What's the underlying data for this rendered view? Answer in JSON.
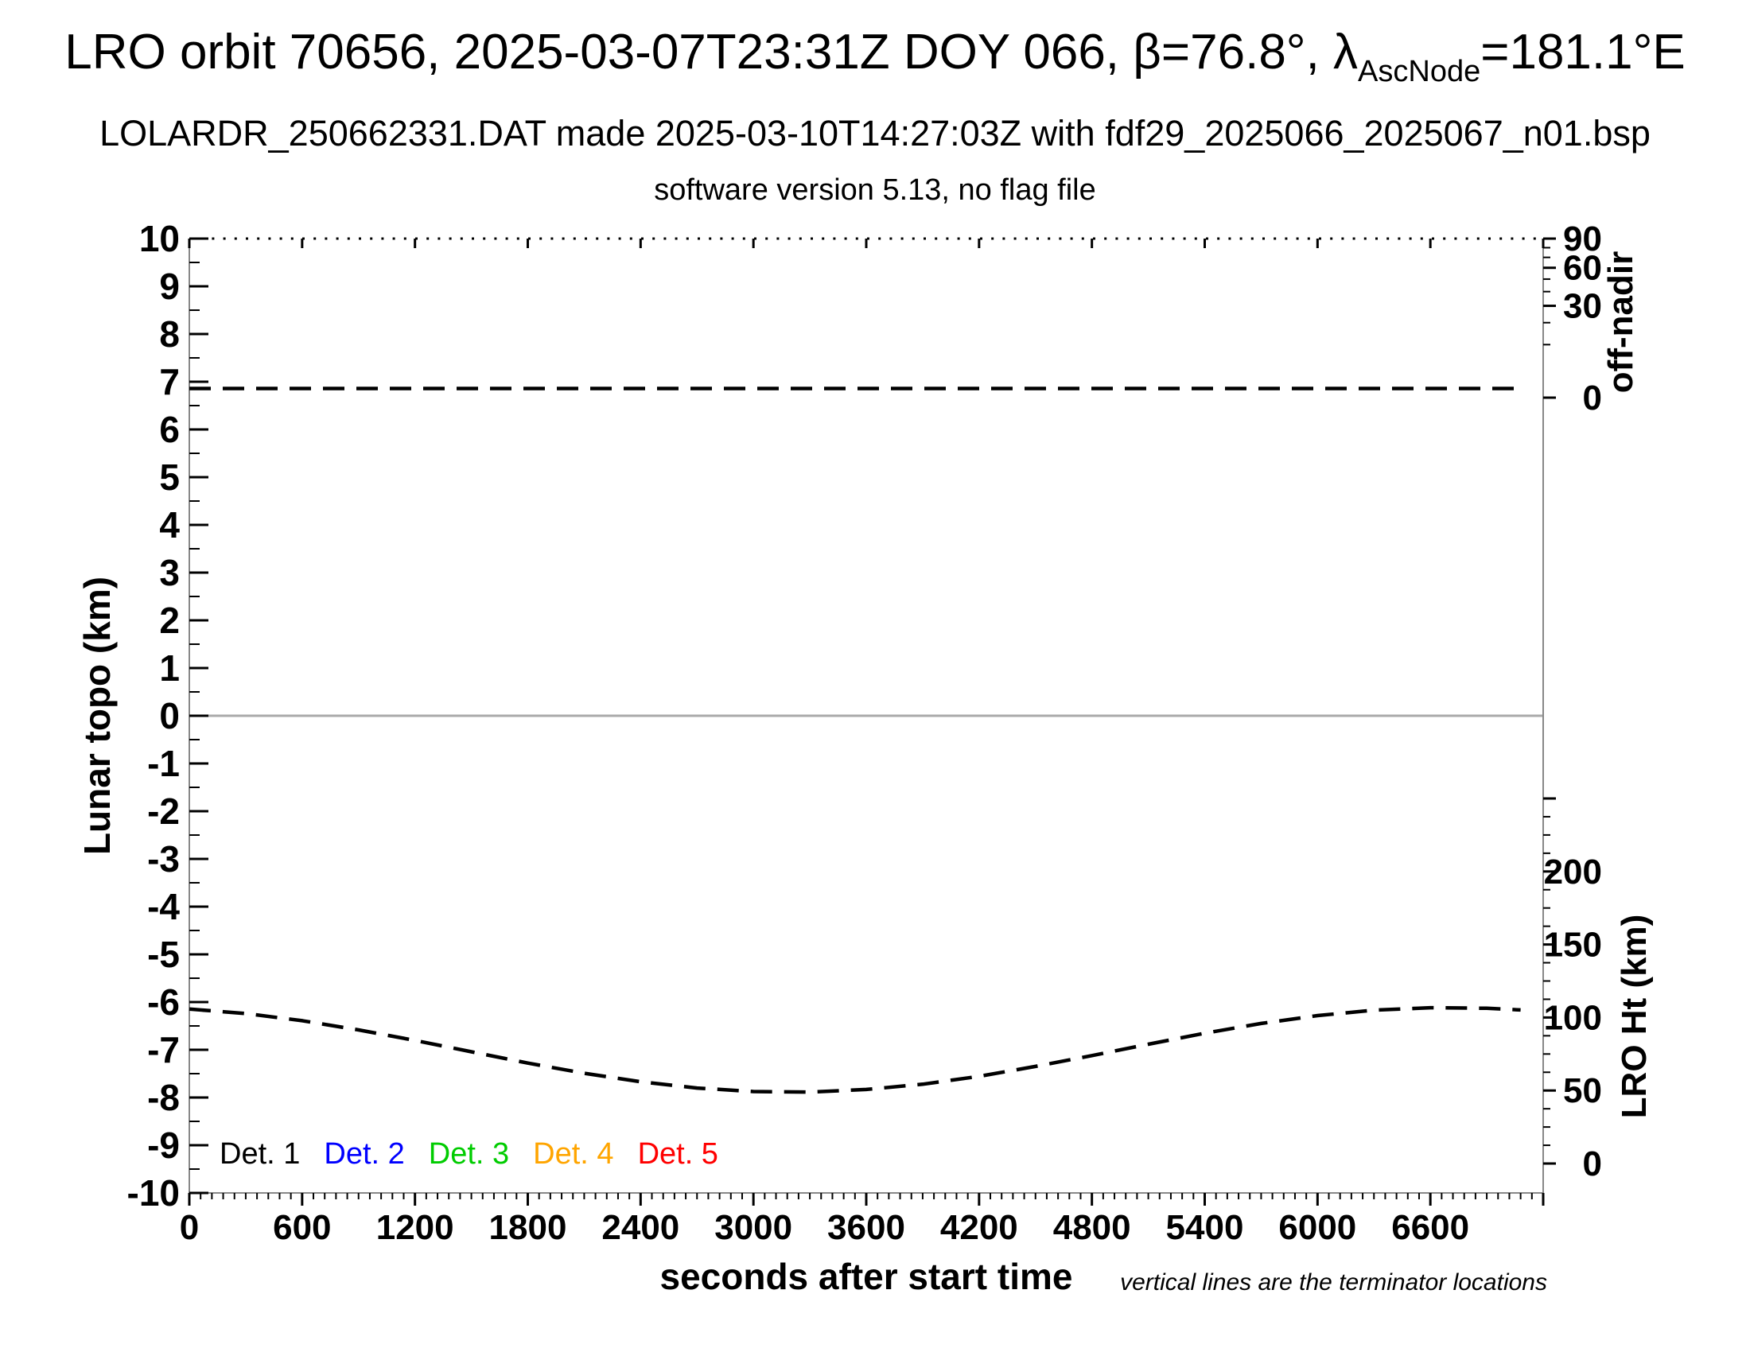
{
  "header": {
    "title_prefix": "LRO orbit 70656, 2025-03-07T23:31Z DOY 066, β=76.8°, λ",
    "title_subscript": "AscNode",
    "title_suffix": "=181.1°E",
    "subtitle_line1": "LOLARDR_250662331.DAT made 2025-03-10T14:27:03Z with fdf29_2025066_2025067_n01.bsp",
    "subtitle_line2": "software version 5.13, no flag file"
  },
  "chart_data": {
    "type": "line",
    "xlabel": "seconds after start time",
    "ylabel_left": "Lunar topo (km)",
    "ylabel_right_top": "off-nadir",
    "ylabel_right_bottom": "LRO Ht (km)",
    "footnote": "vertical lines are the terminator locations",
    "grid": "off",
    "x_axis": {
      "range": [
        0,
        7200
      ],
      "major_tick_step": 600,
      "minor_tick_step": 60,
      "tick_labels": [
        0,
        600,
        1200,
        1800,
        2400,
        3000,
        3600,
        4200,
        4800,
        5400,
        6000,
        6600
      ]
    },
    "topo_axis": {
      "range": [
        -10,
        10
      ],
      "major_tick_step": 1,
      "minor_tick_step": 0.5,
      "tick_labels": [
        10,
        9,
        8,
        7,
        6,
        5,
        4,
        3,
        2,
        1,
        0,
        -1,
        -2,
        -3,
        -4,
        -5,
        -6,
        -7,
        -8,
        -9,
        -10
      ],
      "zero_line_at": 0
    },
    "off_nadir_axis": {
      "scale": "sqrt",
      "range": [
        0,
        90
      ],
      "tick_labels": [
        90,
        60,
        30,
        0
      ],
      "minor_ticks": [
        10,
        20,
        40,
        50,
        70,
        80
      ]
    },
    "lro_ht_axis": {
      "range": [
        0,
        250
      ],
      "major_tick_step": 50,
      "minor_tick_step": 12.5,
      "tick_labels": [
        200,
        150,
        100,
        50,
        0
      ]
    },
    "series": [
      {
        "name": "off-nadir angle (deg)",
        "axis": "off_nadir",
        "line_style": "dashed",
        "color": "#000000",
        "x": [
          0,
          7080
        ],
        "values": [
          0.3,
          0.3
        ]
      },
      {
        "name": "LRO height (km)",
        "axis": "lro_ht",
        "line_style": "dashed",
        "color": "#000000",
        "x": [
          0,
          300,
          600,
          900,
          1200,
          1500,
          1800,
          2100,
          2400,
          2700,
          3000,
          3300,
          3600,
          3900,
          4200,
          4500,
          4800,
          5100,
          5400,
          5700,
          6000,
          6300,
          6600,
          6900,
          7080
        ],
        "values": [
          105.8,
          102.7,
          97.8,
          91.5,
          84.3,
          76.5,
          68.8,
          61.8,
          56.0,
          51.7,
          49.3,
          48.9,
          50.7,
          54.3,
          59.7,
          66.5,
          73.9,
          81.7,
          89.2,
          95.9,
          101.3,
          105.0,
          106.7,
          106.3,
          105.2
        ]
      }
    ],
    "legend": {
      "items": [
        {
          "label": "Det. 1",
          "color": "#000000"
        },
        {
          "label": "Det. 2",
          "color": "#0000ff"
        },
        {
          "label": "Det. 3",
          "color": "#00cc00"
        },
        {
          "label": "Det. 4",
          "color": "#ffa500"
        },
        {
          "label": "Det. 5",
          "color": "#ff0000"
        }
      ]
    }
  }
}
